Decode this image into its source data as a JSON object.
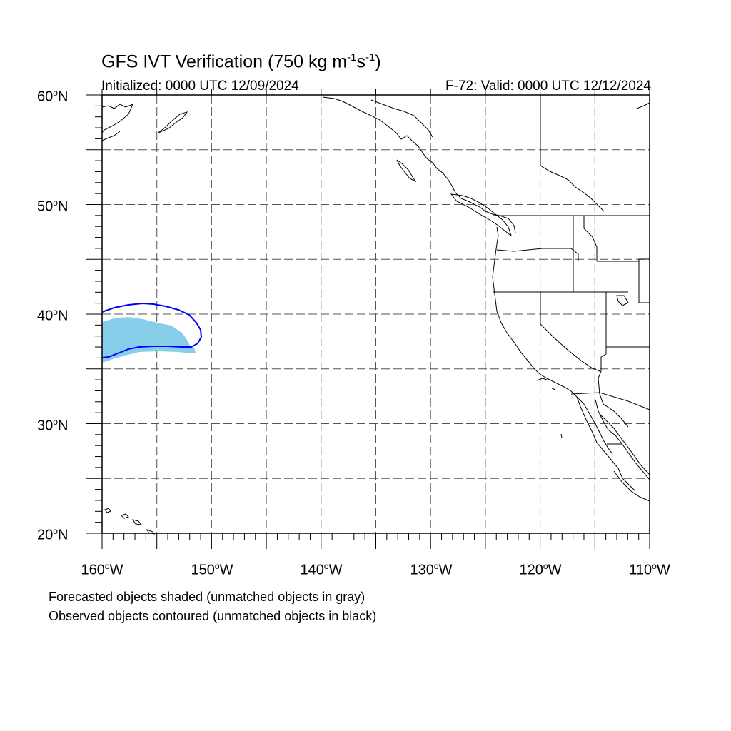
{
  "figure": {
    "title_main": "GFS IVT Verification (750 kg m",
    "title_exp1": "-1",
    "title_mid": "s",
    "title_exp2": "-1",
    "title_end": ")",
    "initialized": "Initialized: 0000 UTC 12/09/2024",
    "valid": "F-72: Valid: 0000 UTC 12/12/2024"
  },
  "axes": {
    "lat_labels": [
      "60",
      "50",
      "40",
      "30",
      "20"
    ],
    "lat_suffix": "N",
    "lon_labels": [
      "160",
      "150",
      "140",
      "130",
      "120",
      "110"
    ],
    "lon_suffix": "W",
    "degree_symbol": "o",
    "lat_range": [
      20,
      60
    ],
    "lon_range": [
      -160,
      -110
    ],
    "grid": true,
    "grid_style": "dashed"
  },
  "legend": {
    "line1": "Forecasted objects shaded (unmatched objects in gray)",
    "line2": "Observed objects contoured (unmatched objects in black)"
  },
  "objects": {
    "forecast_fill_color": "#87ceeb",
    "observed_contour_color": "#0000ff",
    "forecast_object_extent": {
      "lat": [
        35.5,
        39.5
      ],
      "lon": [
        -160,
        -152
      ]
    },
    "observed_object_extent": {
      "lat": [
        36,
        41
      ],
      "lon": [
        -160,
        -151
      ]
    }
  },
  "colors": {
    "background": "#ffffff",
    "coastline": "#000000",
    "grid": "#555555"
  }
}
